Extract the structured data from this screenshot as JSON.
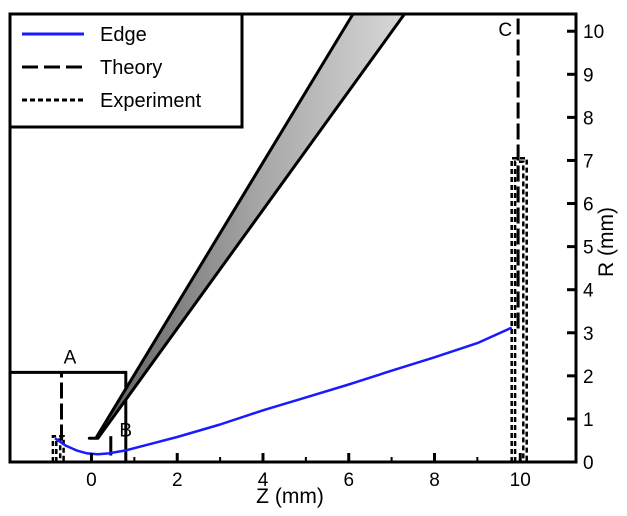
{
  "chart_data": {
    "type": "line",
    "title": "",
    "xlabel": "Z (mm)",
    "ylabel": "R (mm)",
    "xlim": [
      -1.9,
      11.3
    ],
    "ylim": [
      0,
      10.4
    ],
    "x_ticks": [
      "0",
      "2",
      "4",
      "6",
      "8",
      "10"
    ],
    "y_ticks": [
      "0",
      "1",
      "2",
      "3",
      "4",
      "5",
      "6",
      "7",
      "8",
      "9",
      "10"
    ],
    "grid": false,
    "legend_position": "top-left",
    "legend": [
      {
        "label": "Edge",
        "style": "solid",
        "color": "#1a1aff"
      },
      {
        "label": "Theory",
        "style": "long-dash",
        "color": "#000000"
      },
      {
        "label": "Experiment",
        "style": "short-dash",
        "color": "#000000"
      }
    ],
    "series": [
      {
        "name": "Edge",
        "x": [
          -0.85,
          -0.6,
          -0.35,
          -0.1,
          0.15,
          0.4,
          0.8,
          1.3,
          2.0,
          3.0,
          4.0,
          5.0,
          6.0,
          7.0,
          8.0,
          9.0,
          9.8
        ],
        "y": [
          0.55,
          0.38,
          0.27,
          0.2,
          0.18,
          0.2,
          0.27,
          0.4,
          0.58,
          0.87,
          1.2,
          1.5,
          1.8,
          2.12,
          2.43,
          2.76,
          3.12
        ]
      }
    ],
    "theory_lines": [
      {
        "x": [
          -0.7,
          -0.7
        ],
        "y": [
          0.5,
          2.1
        ]
      },
      {
        "x": [
          9.95,
          9.95
        ],
        "y": [
          3.1,
          10.4
        ]
      }
    ],
    "experiment_outlines": [
      {
        "x": [
          -0.9,
          -0.9,
          -0.65,
          -0.65
        ],
        "y": [
          0,
          0.6,
          0.6,
          0
        ]
      },
      {
        "x": [
          9.8,
          9.8,
          10.15,
          10.15
        ],
        "y": [
          0,
          7.05,
          7.05,
          0
        ]
      }
    ],
    "annotations": [
      "A",
      "B",
      "C"
    ],
    "annotation_points": [
      {
        "label": "A",
        "x": -0.5,
        "y": 2.45
      },
      {
        "label": "B",
        "x": 0.8,
        "y": 0.75
      },
      {
        "label": "C",
        "x": 9.65,
        "y": 10.05
      }
    ],
    "shapes": {
      "nozzle": {
        "x": [
          -0.05,
          0.15,
          7.3,
          6.1,
          0.1
        ],
        "y": [
          0.55,
          0.55,
          10.4,
          10.4,
          0.55
        ],
        "color": "#9a9a9a"
      },
      "box": {
        "x": [
          -1.9,
          -1.9,
          0.8,
          0.8
        ],
        "y": [
          0,
          2.08,
          2.08,
          0
        ]
      },
      "probe_tip": {
        "x": [
          0.45,
          0.45
        ],
        "y": [
          0.15,
          0.6
        ]
      }
    }
  }
}
